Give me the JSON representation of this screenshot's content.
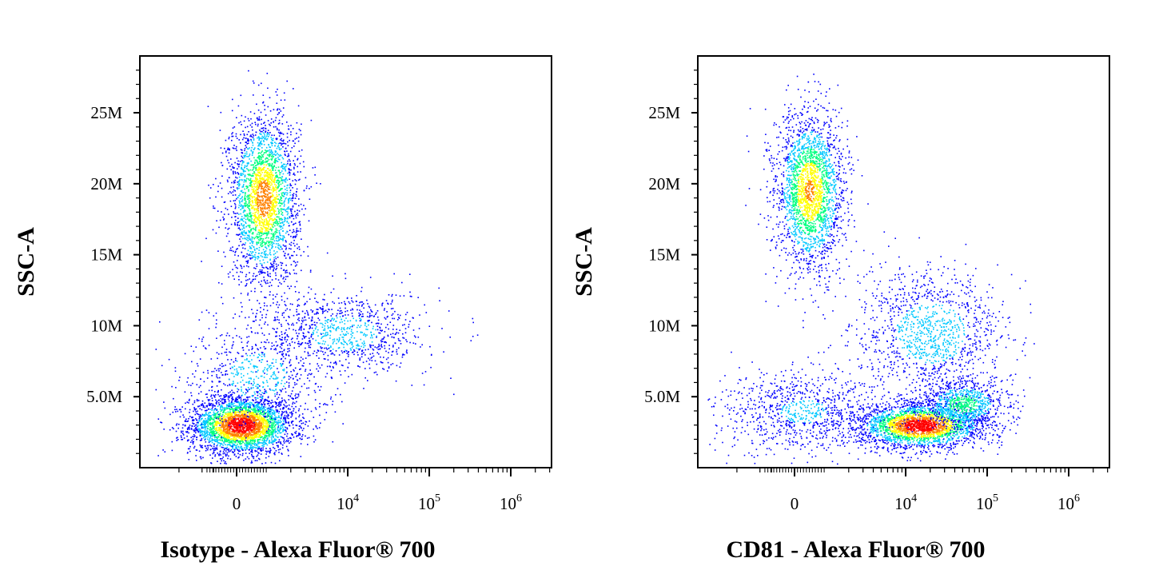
{
  "chart_data": [
    {
      "type": "scatter",
      "xlabel": "Isotype - Alexa Fluor® 700",
      "ylabel": "SSC-A",
      "x_scale": "biexponential",
      "y_ticks": [
        {
          "value": 5000000,
          "label": "5.0M"
        },
        {
          "value": 10000000,
          "label": "10M"
        },
        {
          "value": 15000000,
          "label": "15M"
        },
        {
          "value": 20000000,
          "label": "20M"
        },
        {
          "value": 25000000,
          "label": "25M"
        }
      ],
      "x_ticks": [
        {
          "value": 0,
          "base": "0",
          "exp": ""
        },
        {
          "value": 10000,
          "base": "10",
          "exp": "4"
        },
        {
          "value": 100000,
          "base": "10",
          "exp": "5"
        },
        {
          "value": 1000000,
          "base": "10",
          "exp": "6"
        }
      ],
      "ylim": [
        0,
        29000000
      ],
      "grid": false,
      "colormap": [
        "#0000ff",
        "#00c8ff",
        "#00ff80",
        "#ffff00",
        "#ff8000",
        "#ff0000"
      ],
      "populations": [
        {
          "name": "",
          "x_center": 150,
          "y_center": 3000000,
          "count": 3200,
          "x_spread": 0.18,
          "y_spread": 1000000,
          "peak": 1.0
        },
        {
          "name": "",
          "x_center": 900,
          "y_center": 19000000,
          "count": 2600,
          "x_spread": 0.12,
          "y_spread": 3000000,
          "peak": 0.75
        },
        {
          "name": "",
          "x_center": 9000,
          "y_center": 9500000,
          "count": 900,
          "x_spread": 0.28,
          "y_spread": 1500000,
          "peak": 0.25
        },
        {
          "name": "",
          "x_center": 700,
          "y_center": 6500000,
          "count": 700,
          "x_spread": 0.25,
          "y_spread": 2000000,
          "peak": 0.25
        }
      ]
    },
    {
      "type": "scatter",
      "xlabel": "CD81 - Alexa Fluor® 700",
      "ylabel": "SSC-A",
      "x_scale": "biexponential",
      "y_ticks": [
        {
          "value": 5000000,
          "label": "5.0M"
        },
        {
          "value": 10000000,
          "label": "10M"
        },
        {
          "value": 15000000,
          "label": "15M"
        },
        {
          "value": 20000000,
          "label": "20M"
        },
        {
          "value": 25000000,
          "label": "25M"
        }
      ],
      "x_ticks": [
        {
          "value": 0,
          "base": "0",
          "exp": ""
        },
        {
          "value": 10000,
          "base": "10",
          "exp": "4"
        },
        {
          "value": 100000,
          "base": "10",
          "exp": "5"
        },
        {
          "value": 1000000,
          "base": "10",
          "exp": "6"
        }
      ],
      "ylim": [
        0,
        29000000
      ],
      "grid": false,
      "colormap": [
        "#0000ff",
        "#00c8ff",
        "#00ff80",
        "#ffff00",
        "#ff8000",
        "#ff0000"
      ],
      "populations": [
        {
          "name": "",
          "x_center": 15000,
          "y_center": 3000000,
          "count": 2600,
          "x_spread": 0.22,
          "y_spread": 800000,
          "peak": 1.0
        },
        {
          "name": "",
          "x_center": 50000,
          "y_center": 4500000,
          "count": 900,
          "x_spread": 0.15,
          "y_spread": 900000,
          "peak": 0.45
        },
        {
          "name": "",
          "x_center": 500,
          "y_center": 19500000,
          "count": 2400,
          "x_spread": 0.12,
          "y_spread": 2800000,
          "peak": 0.7
        },
        {
          "name": "",
          "x_center": 20000,
          "y_center": 9500000,
          "count": 1200,
          "x_spread": 0.25,
          "y_spread": 2200000,
          "peak": 0.3
        },
        {
          "name": "",
          "x_center": 300,
          "y_center": 4000000,
          "count": 900,
          "x_spread": 0.3,
          "y_spread": 1500000,
          "peak": 0.2
        }
      ]
    }
  ]
}
